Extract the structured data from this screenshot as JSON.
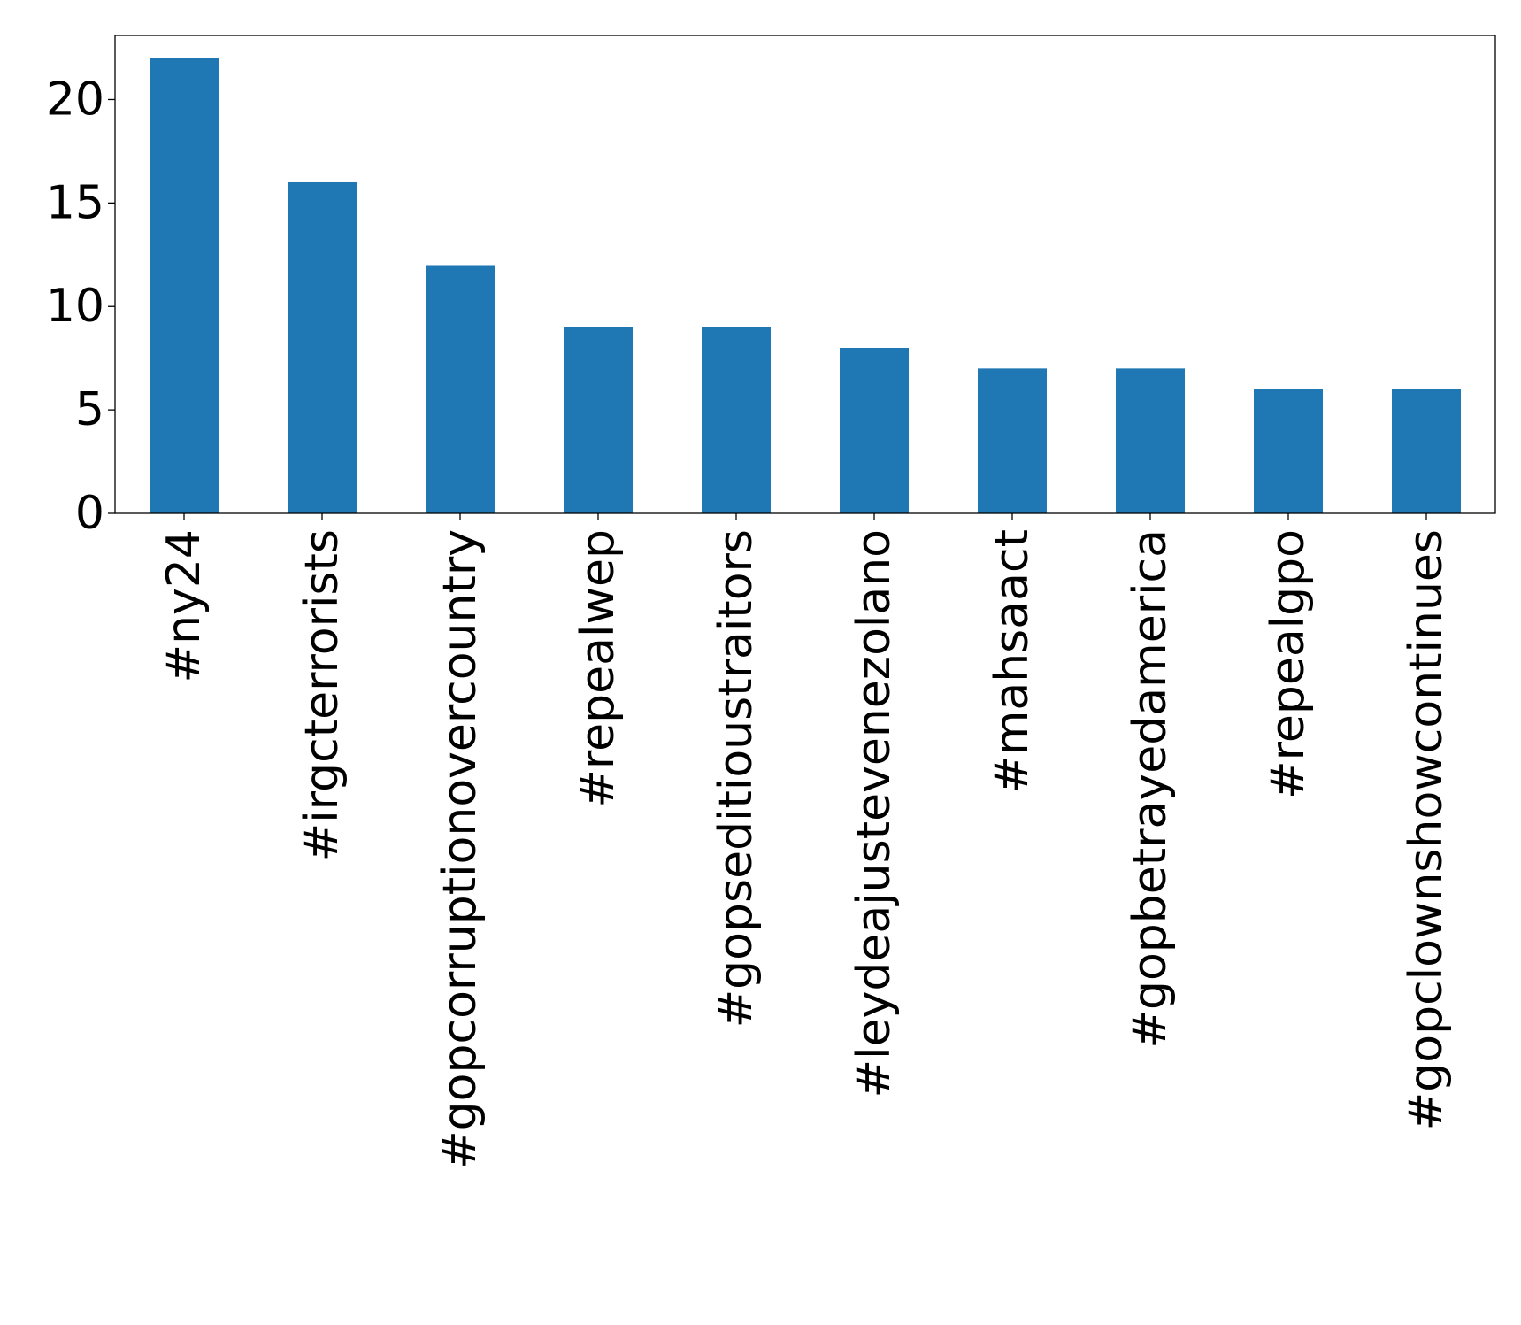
{
  "chart_data": {
    "type": "bar",
    "title": "",
    "xlabel": "",
    "ylabel": "",
    "categories": [
      "#ny24",
      "#irgcterrorists",
      "#gopcorruptionovercountry",
      "#repealwep",
      "#gopseditioustraitors",
      "#leydeajustevenezolano",
      "#mahsaact",
      "#gopbetrayedamerica",
      "#repealgpo",
      "#gopclownshowcontinues"
    ],
    "values": [
      22,
      16,
      12,
      9,
      9,
      8,
      7,
      7,
      6,
      6
    ],
    "ylim": [
      0,
      23.1
    ],
    "yticks": [
      0,
      5,
      10,
      15,
      20
    ],
    "grid": false,
    "legend": "none",
    "bar_color": "#1f77b4"
  }
}
